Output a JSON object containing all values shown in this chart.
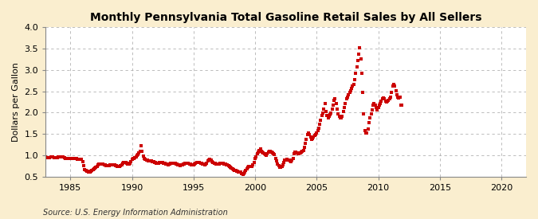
{
  "title": "Monthly Pennsylvania Total Gasoline Retail Sales by All Sellers",
  "ylabel": "Dollars per Gallon",
  "source": "Source: U.S. Energy Information Administration",
  "xlim": [
    1983,
    2022
  ],
  "ylim": [
    0.5,
    4.0
  ],
  "yticks": [
    0.5,
    1.0,
    1.5,
    2.0,
    2.5,
    3.0,
    3.5,
    4.0
  ],
  "xticks": [
    1985,
    1990,
    1995,
    2000,
    2005,
    2010,
    2015,
    2020
  ],
  "background_color": "#faeecf",
  "plot_bg_color": "#ffffff",
  "marker_color": "#cc0000",
  "grid_color": "#aaaaaa",
  "data": [
    [
      1983.0,
      0.96
    ],
    [
      1983.08,
      0.95
    ],
    [
      1983.17,
      0.94
    ],
    [
      1983.25,
      0.95
    ],
    [
      1983.33,
      0.95
    ],
    [
      1983.42,
      0.96
    ],
    [
      1983.5,
      0.96
    ],
    [
      1983.58,
      0.96
    ],
    [
      1983.67,
      0.95
    ],
    [
      1983.75,
      0.95
    ],
    [
      1983.83,
      0.95
    ],
    [
      1983.92,
      0.94
    ],
    [
      1984.0,
      0.96
    ],
    [
      1984.08,
      0.96
    ],
    [
      1984.17,
      0.96
    ],
    [
      1984.25,
      0.96
    ],
    [
      1984.33,
      0.96
    ],
    [
      1984.42,
      0.96
    ],
    [
      1984.5,
      0.94
    ],
    [
      1984.58,
      0.93
    ],
    [
      1984.67,
      0.93
    ],
    [
      1984.75,
      0.93
    ],
    [
      1984.83,
      0.93
    ],
    [
      1984.92,
      0.93
    ],
    [
      1985.0,
      0.92
    ],
    [
      1985.08,
      0.92
    ],
    [
      1985.17,
      0.92
    ],
    [
      1985.25,
      0.93
    ],
    [
      1985.33,
      0.93
    ],
    [
      1985.42,
      0.93
    ],
    [
      1985.5,
      0.92
    ],
    [
      1985.58,
      0.91
    ],
    [
      1985.67,
      0.91
    ],
    [
      1985.75,
      0.91
    ],
    [
      1985.83,
      0.91
    ],
    [
      1985.92,
      0.91
    ],
    [
      1986.0,
      0.85
    ],
    [
      1986.08,
      0.76
    ],
    [
      1986.17,
      0.67
    ],
    [
      1986.25,
      0.64
    ],
    [
      1986.33,
      0.63
    ],
    [
      1986.42,
      0.62
    ],
    [
      1986.5,
      0.61
    ],
    [
      1986.58,
      0.61
    ],
    [
      1986.67,
      0.63
    ],
    [
      1986.75,
      0.65
    ],
    [
      1986.83,
      0.67
    ],
    [
      1986.92,
      0.69
    ],
    [
      1987.0,
      0.7
    ],
    [
      1987.08,
      0.72
    ],
    [
      1987.17,
      0.74
    ],
    [
      1987.25,
      0.77
    ],
    [
      1987.33,
      0.79
    ],
    [
      1987.42,
      0.8
    ],
    [
      1987.5,
      0.8
    ],
    [
      1987.58,
      0.79
    ],
    [
      1987.67,
      0.79
    ],
    [
      1987.75,
      0.78
    ],
    [
      1987.83,
      0.77
    ],
    [
      1987.92,
      0.76
    ],
    [
      1988.0,
      0.76
    ],
    [
      1988.08,
      0.75
    ],
    [
      1988.17,
      0.75
    ],
    [
      1988.25,
      0.77
    ],
    [
      1988.33,
      0.78
    ],
    [
      1988.42,
      0.78
    ],
    [
      1988.5,
      0.78
    ],
    [
      1988.58,
      0.77
    ],
    [
      1988.67,
      0.76
    ],
    [
      1988.75,
      0.75
    ],
    [
      1988.83,
      0.74
    ],
    [
      1988.92,
      0.73
    ],
    [
      1989.0,
      0.74
    ],
    [
      1989.08,
      0.75
    ],
    [
      1989.17,
      0.77
    ],
    [
      1989.25,
      0.82
    ],
    [
      1989.33,
      0.84
    ],
    [
      1989.42,
      0.84
    ],
    [
      1989.5,
      0.83
    ],
    [
      1989.58,
      0.81
    ],
    [
      1989.67,
      0.8
    ],
    [
      1989.75,
      0.8
    ],
    [
      1989.83,
      0.82
    ],
    [
      1989.92,
      0.85
    ],
    [
      1990.0,
      0.9
    ],
    [
      1990.08,
      0.93
    ],
    [
      1990.17,
      0.93
    ],
    [
      1990.25,
      0.95
    ],
    [
      1990.33,
      0.97
    ],
    [
      1990.42,
      0.99
    ],
    [
      1990.5,
      1.02
    ],
    [
      1990.58,
      1.06
    ],
    [
      1990.67,
      1.1
    ],
    [
      1990.75,
      1.22
    ],
    [
      1990.83,
      1.1
    ],
    [
      1990.92,
      0.98
    ],
    [
      1991.0,
      0.93
    ],
    [
      1991.08,
      0.9
    ],
    [
      1991.17,
      0.88
    ],
    [
      1991.25,
      0.88
    ],
    [
      1991.33,
      0.87
    ],
    [
      1991.42,
      0.87
    ],
    [
      1991.5,
      0.87
    ],
    [
      1991.58,
      0.86
    ],
    [
      1991.67,
      0.85
    ],
    [
      1991.75,
      0.85
    ],
    [
      1991.83,
      0.84
    ],
    [
      1991.92,
      0.83
    ],
    [
      1992.0,
      0.82
    ],
    [
      1992.08,
      0.81
    ],
    [
      1992.17,
      0.82
    ],
    [
      1992.25,
      0.83
    ],
    [
      1992.33,
      0.84
    ],
    [
      1992.42,
      0.84
    ],
    [
      1992.5,
      0.83
    ],
    [
      1992.58,
      0.82
    ],
    [
      1992.67,
      0.81
    ],
    [
      1992.75,
      0.8
    ],
    [
      1992.83,
      0.79
    ],
    [
      1992.92,
      0.78
    ],
    [
      1993.0,
      0.79
    ],
    [
      1993.08,
      0.8
    ],
    [
      1993.17,
      0.81
    ],
    [
      1993.25,
      0.82
    ],
    [
      1993.33,
      0.82
    ],
    [
      1993.42,
      0.82
    ],
    [
      1993.5,
      0.81
    ],
    [
      1993.58,
      0.8
    ],
    [
      1993.67,
      0.79
    ],
    [
      1993.75,
      0.78
    ],
    [
      1993.83,
      0.77
    ],
    [
      1993.92,
      0.76
    ],
    [
      1994.0,
      0.77
    ],
    [
      1994.08,
      0.78
    ],
    [
      1994.17,
      0.79
    ],
    [
      1994.25,
      0.8
    ],
    [
      1994.33,
      0.81
    ],
    [
      1994.42,
      0.82
    ],
    [
      1994.5,
      0.82
    ],
    [
      1994.58,
      0.81
    ],
    [
      1994.67,
      0.8
    ],
    [
      1994.75,
      0.79
    ],
    [
      1994.83,
      0.78
    ],
    [
      1994.92,
      0.77
    ],
    [
      1995.0,
      0.78
    ],
    [
      1995.08,
      0.79
    ],
    [
      1995.17,
      0.81
    ],
    [
      1995.25,
      0.83
    ],
    [
      1995.33,
      0.84
    ],
    [
      1995.42,
      0.84
    ],
    [
      1995.5,
      0.83
    ],
    [
      1995.58,
      0.82
    ],
    [
      1995.67,
      0.81
    ],
    [
      1995.75,
      0.8
    ],
    [
      1995.83,
      0.79
    ],
    [
      1995.92,
      0.78
    ],
    [
      1996.0,
      0.8
    ],
    [
      1996.08,
      0.82
    ],
    [
      1996.17,
      0.86
    ],
    [
      1996.25,
      0.88
    ],
    [
      1996.33,
      0.9
    ],
    [
      1996.42,
      0.88
    ],
    [
      1996.5,
      0.85
    ],
    [
      1996.58,
      0.83
    ],
    [
      1996.67,
      0.82
    ],
    [
      1996.75,
      0.81
    ],
    [
      1996.83,
      0.8
    ],
    [
      1996.92,
      0.79
    ],
    [
      1997.0,
      0.79
    ],
    [
      1997.08,
      0.8
    ],
    [
      1997.17,
      0.81
    ],
    [
      1997.25,
      0.82
    ],
    [
      1997.33,
      0.82
    ],
    [
      1997.42,
      0.81
    ],
    [
      1997.5,
      0.8
    ],
    [
      1997.58,
      0.79
    ],
    [
      1997.67,
      0.78
    ],
    [
      1997.75,
      0.77
    ],
    [
      1997.83,
      0.76
    ],
    [
      1997.92,
      0.74
    ],
    [
      1998.0,
      0.72
    ],
    [
      1998.08,
      0.7
    ],
    [
      1998.17,
      0.68
    ],
    [
      1998.25,
      0.67
    ],
    [
      1998.33,
      0.65
    ],
    [
      1998.42,
      0.64
    ],
    [
      1998.5,
      0.63
    ],
    [
      1998.58,
      0.62
    ],
    [
      1998.67,
      0.61
    ],
    [
      1998.75,
      0.61
    ],
    [
      1998.83,
      0.6
    ],
    [
      1998.92,
      0.57
    ],
    [
      1999.0,
      0.56
    ],
    [
      1999.08,
      0.57
    ],
    [
      1999.17,
      0.6
    ],
    [
      1999.25,
      0.65
    ],
    [
      1999.33,
      0.68
    ],
    [
      1999.42,
      0.71
    ],
    [
      1999.5,
      0.74
    ],
    [
      1999.58,
      0.74
    ],
    [
      1999.67,
      0.74
    ],
    [
      1999.75,
      0.73
    ],
    [
      1999.83,
      0.77
    ],
    [
      1999.92,
      0.83
    ],
    [
      2000.0,
      0.92
    ],
    [
      2000.08,
      0.96
    ],
    [
      2000.17,
      1.04
    ],
    [
      2000.25,
      1.07
    ],
    [
      2000.33,
      1.11
    ],
    [
      2000.42,
      1.14
    ],
    [
      2000.5,
      1.1
    ],
    [
      2000.58,
      1.08
    ],
    [
      2000.67,
      1.06
    ],
    [
      2000.75,
      1.04
    ],
    [
      2000.83,
      1.02
    ],
    [
      2000.92,
      0.99
    ],
    [
      2001.0,
      1.04
    ],
    [
      2001.08,
      1.07
    ],
    [
      2001.17,
      1.09
    ],
    [
      2001.25,
      1.1
    ],
    [
      2001.33,
      1.08
    ],
    [
      2001.42,
      1.06
    ],
    [
      2001.5,
      1.03
    ],
    [
      2001.58,
      1.01
    ],
    [
      2001.67,
      0.93
    ],
    [
      2001.75,
      0.86
    ],
    [
      2001.83,
      0.8
    ],
    [
      2001.92,
      0.76
    ],
    [
      2002.0,
      0.72
    ],
    [
      2002.08,
      0.72
    ],
    [
      2002.17,
      0.74
    ],
    [
      2002.25,
      0.78
    ],
    [
      2002.33,
      0.84
    ],
    [
      2002.42,
      0.88
    ],
    [
      2002.5,
      0.89
    ],
    [
      2002.58,
      0.9
    ],
    [
      2002.67,
      0.89
    ],
    [
      2002.75,
      0.88
    ],
    [
      2002.83,
      0.86
    ],
    [
      2002.92,
      0.85
    ],
    [
      2003.0,
      0.88
    ],
    [
      2003.08,
      0.93
    ],
    [
      2003.17,
      1.04
    ],
    [
      2003.25,
      1.07
    ],
    [
      2003.33,
      1.08
    ],
    [
      2003.42,
      1.06
    ],
    [
      2003.5,
      1.04
    ],
    [
      2003.58,
      1.03
    ],
    [
      2003.67,
      1.05
    ],
    [
      2003.75,
      1.07
    ],
    [
      2003.83,
      1.1
    ],
    [
      2003.92,
      1.12
    ],
    [
      2004.0,
      1.18
    ],
    [
      2004.08,
      1.28
    ],
    [
      2004.17,
      1.38
    ],
    [
      2004.25,
      1.48
    ],
    [
      2004.33,
      1.52
    ],
    [
      2004.42,
      1.48
    ],
    [
      2004.5,
      1.43
    ],
    [
      2004.58,
      1.38
    ],
    [
      2004.67,
      1.4
    ],
    [
      2004.75,
      1.43
    ],
    [
      2004.83,
      1.46
    ],
    [
      2004.92,
      1.48
    ],
    [
      2005.0,
      1.53
    ],
    [
      2005.08,
      1.58
    ],
    [
      2005.17,
      1.63
    ],
    [
      2005.25,
      1.73
    ],
    [
      2005.33,
      1.83
    ],
    [
      2005.42,
      1.93
    ],
    [
      2005.5,
      1.98
    ],
    [
      2005.58,
      2.08
    ],
    [
      2005.67,
      2.22
    ],
    [
      2005.75,
      2.02
    ],
    [
      2005.83,
      1.93
    ],
    [
      2005.92,
      1.88
    ],
    [
      2006.0,
      1.92
    ],
    [
      2006.08,
      1.96
    ],
    [
      2006.17,
      1.98
    ],
    [
      2006.25,
      2.08
    ],
    [
      2006.33,
      2.18
    ],
    [
      2006.42,
      2.28
    ],
    [
      2006.5,
      2.32
    ],
    [
      2006.58,
      2.22
    ],
    [
      2006.67,
      2.08
    ],
    [
      2006.75,
      1.97
    ],
    [
      2006.83,
      1.92
    ],
    [
      2006.92,
      1.88
    ],
    [
      2007.0,
      1.88
    ],
    [
      2007.08,
      1.92
    ],
    [
      2007.17,
      2.02
    ],
    [
      2007.25,
      2.12
    ],
    [
      2007.33,
      2.22
    ],
    [
      2007.42,
      2.32
    ],
    [
      2007.5,
      2.37
    ],
    [
      2007.58,
      2.42
    ],
    [
      2007.67,
      2.47
    ],
    [
      2007.75,
      2.52
    ],
    [
      2007.83,
      2.57
    ],
    [
      2007.92,
      2.62
    ],
    [
      2008.0,
      2.67
    ],
    [
      2008.08,
      2.77
    ],
    [
      2008.17,
      2.92
    ],
    [
      2008.25,
      3.07
    ],
    [
      2008.33,
      3.22
    ],
    [
      2008.42,
      3.37
    ],
    [
      2008.5,
      3.52
    ],
    [
      2008.58,
      3.26
    ],
    [
      2008.67,
      2.92
    ],
    [
      2008.75,
      2.47
    ],
    [
      2008.83,
      1.97
    ],
    [
      2008.92,
      1.57
    ],
    [
      2009.0,
      1.52
    ],
    [
      2009.08,
      1.52
    ],
    [
      2009.17,
      1.62
    ],
    [
      2009.25,
      1.77
    ],
    [
      2009.33,
      1.87
    ],
    [
      2009.42,
      1.97
    ],
    [
      2009.5,
      2.07
    ],
    [
      2009.58,
      2.17
    ],
    [
      2009.67,
      2.22
    ],
    [
      2009.75,
      2.17
    ],
    [
      2009.83,
      2.12
    ],
    [
      2009.92,
      2.07
    ],
    [
      2010.0,
      2.12
    ],
    [
      2010.08,
      2.17
    ],
    [
      2010.17,
      2.22
    ],
    [
      2010.25,
      2.27
    ],
    [
      2010.33,
      2.32
    ],
    [
      2010.42,
      2.35
    ],
    [
      2010.5,
      2.32
    ],
    [
      2010.58,
      2.27
    ],
    [
      2010.67,
      2.25
    ],
    [
      2010.75,
      2.27
    ],
    [
      2010.83,
      2.29
    ],
    [
      2010.92,
      2.32
    ],
    [
      2011.0,
      2.37
    ],
    [
      2011.08,
      2.47
    ],
    [
      2011.17,
      2.62
    ],
    [
      2011.25,
      2.67
    ],
    [
      2011.33,
      2.62
    ],
    [
      2011.42,
      2.52
    ],
    [
      2011.5,
      2.42
    ],
    [
      2011.58,
      2.37
    ],
    [
      2011.67,
      2.35
    ],
    [
      2011.75,
      2.37
    ],
    [
      2011.83,
      2.17
    ],
    [
      2011.92,
      2.17
    ]
  ]
}
